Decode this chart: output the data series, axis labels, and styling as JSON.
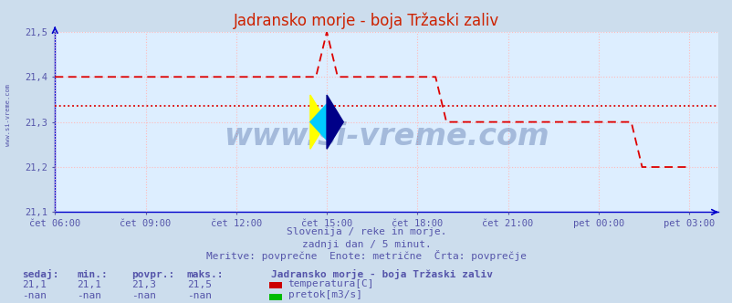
{
  "title": "Jadransko morje - boja Tržaski zaliv",
  "bg_color": "#ccdded",
  "plot_bg_color": "#ddeeff",
  "grid_color": "#ffbbbb",
  "axis_color": "#0000cc",
  "text_color": "#5555aa",
  "ylim": [
    21.1,
    21.5
  ],
  "yticks": [
    21.1,
    21.2,
    21.3,
    21.4,
    21.5
  ],
  "ylabel_vals": [
    "21,1",
    "21,2",
    "21,3",
    "21,4",
    "21,5"
  ],
  "xtick_labels": [
    "čet 06:00",
    "čet 09:00",
    "čet 12:00",
    "čet 15:00",
    "čet 18:00",
    "čet 21:00",
    "pet 00:00",
    "pet 03:00"
  ],
  "xtick_positions": [
    0.0,
    0.1667,
    0.3333,
    0.5,
    0.6667,
    0.8333,
    1.0,
    1.1667
  ],
  "xlim_max": 1.22,
  "avg_line_y": 21.335,
  "avg_line_color": "#dd0000",
  "temp_line_color": "#dd0000",
  "temp_data_x": [
    0.0,
    0.02,
    0.04,
    0.06,
    0.08,
    0.1,
    0.12,
    0.14,
    0.16,
    0.18,
    0.2,
    0.22,
    0.24,
    0.26,
    0.28,
    0.3,
    0.32,
    0.34,
    0.36,
    0.38,
    0.4,
    0.42,
    0.44,
    0.46,
    0.48,
    0.5,
    0.52,
    0.54,
    0.56,
    0.58,
    0.6,
    0.62,
    0.64,
    0.66,
    0.68,
    0.7,
    0.72,
    0.74,
    0.76,
    0.78,
    0.8,
    0.82,
    0.84,
    0.86,
    0.88,
    0.9,
    0.92,
    0.94,
    0.96,
    0.98,
    1.0,
    1.02,
    1.04,
    1.06,
    1.08,
    1.1,
    1.12,
    1.14,
    1.16,
    1.1667
  ],
  "temp_data_y": [
    21.4,
    21.4,
    21.4,
    21.4,
    21.4,
    21.4,
    21.4,
    21.4,
    21.4,
    21.4,
    21.4,
    21.4,
    21.4,
    21.4,
    21.4,
    21.4,
    21.4,
    21.4,
    21.4,
    21.4,
    21.4,
    21.4,
    21.4,
    21.4,
    21.4,
    21.5,
    21.4,
    21.4,
    21.4,
    21.4,
    21.4,
    21.4,
    21.4,
    21.4,
    21.4,
    21.4,
    21.3,
    21.3,
    21.3,
    21.3,
    21.3,
    21.3,
    21.3,
    21.3,
    21.3,
    21.3,
    21.3,
    21.3,
    21.3,
    21.3,
    21.3,
    21.3,
    21.3,
    21.3,
    21.2,
    21.2,
    21.2,
    21.2,
    21.2,
    21.2
  ],
  "watermark": "www.si-vreme.com",
  "subtitle1": "Slovenija / reke in morje.",
  "subtitle2": "zadnji dan / 5 minut.",
  "subtitle3": "Meritve: povprečne  Enote: metrične  Črta: povprečje",
  "legend_title": "Jadransko morje - boja Tržaski zaliv",
  "legend_items": [
    {
      "label": "temperatura[C]",
      "color": "#cc0000"
    },
    {
      "label": "pretok[m3/s]",
      "color": "#00bb00"
    }
  ],
  "stats_headers": [
    "sedaj:",
    "min.:",
    "povpr.:",
    "maks.:"
  ],
  "stats_row1": [
    "21,1",
    "21,1",
    "21,3",
    "21,5"
  ],
  "stats_row2": [
    "-nan",
    "-nan",
    "-nan",
    "-nan"
  ],
  "title_color": "#cc2200",
  "title_fontsize": 12
}
